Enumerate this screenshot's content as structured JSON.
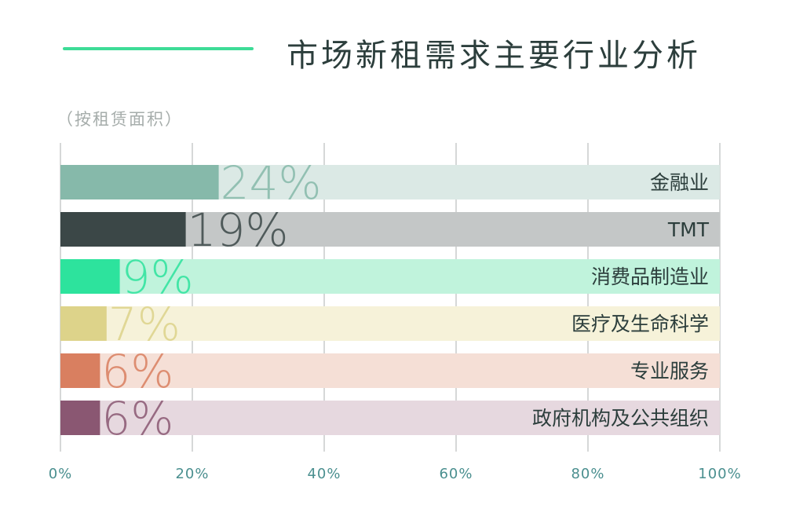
{
  "title": "市场新租需求主要行业分析",
  "subtitle": "（按租赁面积）",
  "colors": {
    "accent_line": "#3ddc97",
    "title_text": "#2c3e3c",
    "axis_text": "#4a8f8f",
    "grid": "#c8cccb"
  },
  "chart_data": {
    "type": "bar",
    "orientation": "horizontal",
    "stacked_to_100": true,
    "categories": [
      "金融业",
      "TMT",
      "消费品制造业",
      "医疗及生命科学",
      "专业服务",
      "政府机构及公共组织"
    ],
    "values": [
      24,
      19,
      9,
      7,
      6,
      6
    ],
    "value_labels": [
      "24%",
      "19%",
      "9%",
      "7%",
      "6%",
      "6%"
    ],
    "bar_colors": [
      "#86b9aa",
      "#3b4747",
      "#2de39d",
      "#ddd38a",
      "#d97f60",
      "#8a5772"
    ],
    "track_colors": [
      "#dbe9e5",
      "#c4c7c7",
      "#c0f3dc",
      "#f6f2d9",
      "#f5dfd6",
      "#e6d8df"
    ],
    "xticks": [
      "0%",
      "20%",
      "40%",
      "60%",
      "80%",
      "100%"
    ],
    "xtick_values": [
      0,
      20,
      40,
      60,
      80,
      100
    ],
    "xlim": [
      0,
      100
    ],
    "grid": true
  }
}
